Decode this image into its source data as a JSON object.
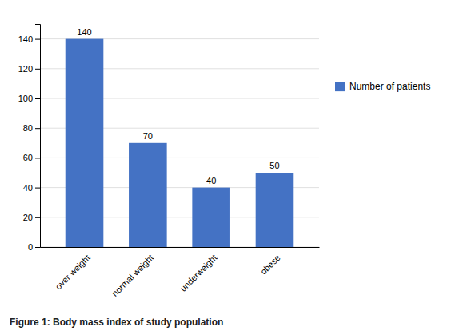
{
  "chart_data": {
    "type": "bar",
    "title": "Figure 1: Body mass index of study population",
    "categories": [
      "over weight",
      "normal weight",
      "underweight",
      "obese"
    ],
    "series": [
      {
        "name": "Number of patients",
        "color": "#4472C4",
        "values": [
          140,
          70,
          40,
          50
        ]
      }
    ],
    "ylim": [
      0,
      150
    ],
    "yticks": [
      0,
      20,
      40,
      60,
      80,
      100,
      120,
      140
    ],
    "grid": true,
    "legend": "right",
    "data_labels": true
  }
}
